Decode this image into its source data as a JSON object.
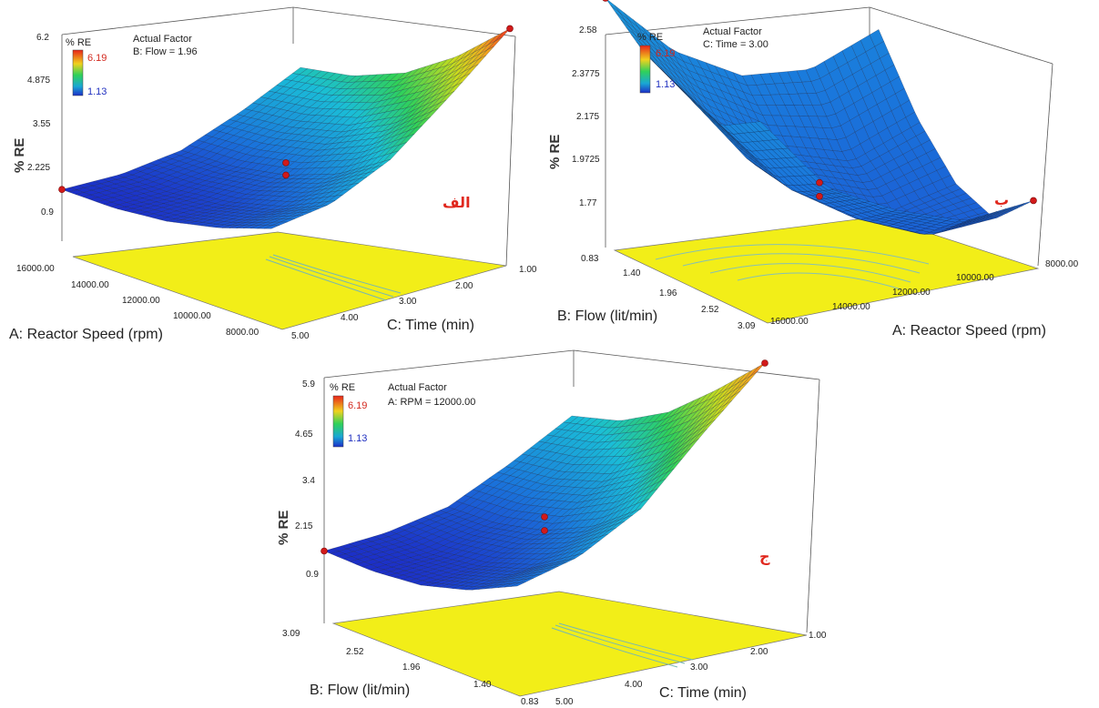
{
  "panels": [
    {
      "id": "a",
      "tag": "الف",
      "z_title": "% RE",
      "legend": {
        "title": "% RE",
        "max": "6.19",
        "min": "1.13"
      },
      "actual_factor": {
        "title": "Actual Factor",
        "value": "B: Flow = 1.96"
      },
      "z_ticks": [
        "6.2",
        "4.875",
        "3.55",
        "2.225",
        "0.9"
      ],
      "left_axis": {
        "title": "A: Reactor Speed (rpm)",
        "ticks": [
          "16000.00",
          "14000.00",
          "12000.00",
          "10000.00",
          "8000.00"
        ]
      },
      "right_axis": {
        "title": "C: Time (min)",
        "ticks": [
          "5.00",
          "4.00",
          "3.00",
          "2.00",
          "1.00"
        ]
      }
    },
    {
      "id": "b",
      "tag": "ب",
      "z_title": "% RE",
      "legend": {
        "title": "% RE",
        "max": "6.19",
        "min": "1.13"
      },
      "actual_factor": {
        "title": "Actual Factor",
        "value": "C: Time = 3.00"
      },
      "z_ticks": [
        "2.58",
        "2.3775",
        "2.175",
        "1.9725",
        "1.77"
      ],
      "left_axis": {
        "title": "B: Flow (lit/min)",
        "ticks": [
          "0.83",
          "1.40",
          "1.96",
          "2.52",
          "3.09"
        ]
      },
      "right_axis": {
        "title": "A: Reactor Speed (rpm)",
        "ticks": [
          "16000.00",
          "14000.00",
          "12000.00",
          "10000.00",
          "8000.00"
        ]
      }
    },
    {
      "id": "c",
      "tag": "ج",
      "z_title": "% RE",
      "legend": {
        "title": "% RE",
        "max": "6.19",
        "min": "1.13"
      },
      "actual_factor": {
        "title": "Actual Factor",
        "value": "A: RPM = 12000.00"
      },
      "z_ticks": [
        "5.9",
        "4.65",
        "3.4",
        "2.15",
        "0.9"
      ],
      "left_axis": {
        "title": "B: Flow (lit/min)",
        "ticks": [
          "3.09",
          "2.52",
          "1.96",
          "1.40",
          "0.83"
        ]
      },
      "right_axis": {
        "title": "C: Time (min)",
        "ticks": [
          "5.00",
          "4.00",
          "3.00",
          "2.00",
          "1.00"
        ]
      }
    }
  ],
  "chart_data": [
    {
      "type": "surface",
      "z_label": "% RE",
      "x_label": "A: Reactor Speed (rpm)",
      "y_label": "C: Time (min)",
      "fixed_factor": "B: Flow = 1.96",
      "x": [
        16000,
        14000,
        12000,
        10000,
        8000
      ],
      "y": [
        5,
        4,
        3,
        2,
        1
      ],
      "z": [
        [
          1.13,
          1.12,
          1.25,
          1.55,
          2.0
        ],
        [
          1.28,
          1.3,
          1.45,
          1.8,
          2.4
        ],
        [
          1.65,
          1.7,
          1.95,
          2.45,
          3.3
        ],
        [
          2.4,
          2.55,
          2.9,
          3.6,
          4.7
        ],
        [
          3.3,
          3.55,
          4.1,
          5.0,
          6.19
        ]
      ],
      "zlim": [
        0.9,
        6.2
      ],
      "color_range": [
        1.13,
        6.19
      ]
    },
    {
      "type": "surface",
      "z_label": "% RE",
      "x_label": "B: Flow (lit/min)",
      "y_label": "A: Reactor Speed (rpm)",
      "fixed_factor": "C: Time = 3.00",
      "x": [
        0.83,
        1.4,
        1.96,
        2.52,
        3.09
      ],
      "y": [
        16000,
        14000,
        12000,
        10000,
        8000
      ],
      "z": [
        [
          2.58,
          2.45,
          2.38,
          2.32,
          2.4
        ],
        [
          2.35,
          2.18,
          2.08,
          2.05,
          2.12
        ],
        [
          2.22,
          2.02,
          1.92,
          1.9,
          2.0
        ],
        [
          2.2,
          1.95,
          1.82,
          1.8,
          1.92
        ],
        [
          2.3,
          2.05,
          1.88,
          1.82,
          1.95
        ]
      ],
      "zlim": [
        1.77,
        2.58
      ],
      "color_range": [
        1.13,
        6.19
      ]
    },
    {
      "type": "surface",
      "z_label": "% RE",
      "x_label": "B: Flow (lit/min)",
      "y_label": "C: Time (min)",
      "fixed_factor": "A: RPM = 12000.00",
      "x": [
        3.09,
        2.52,
        1.96,
        1.4,
        0.83
      ],
      "y": [
        5,
        4,
        3,
        2,
        1
      ],
      "z": [
        [
          1.13,
          1.1,
          1.2,
          1.5,
          2.0
        ],
        [
          1.28,
          1.25,
          1.4,
          1.75,
          2.4
        ],
        [
          1.6,
          1.65,
          1.9,
          2.4,
          3.2
        ],
        [
          2.3,
          2.45,
          2.8,
          3.5,
          4.6
        ],
        [
          3.1,
          3.4,
          4.0,
          4.9,
          5.9
        ]
      ],
      "zlim": [
        0.9,
        5.9
      ],
      "color_range": [
        1.13,
        6.19
      ]
    }
  ]
}
